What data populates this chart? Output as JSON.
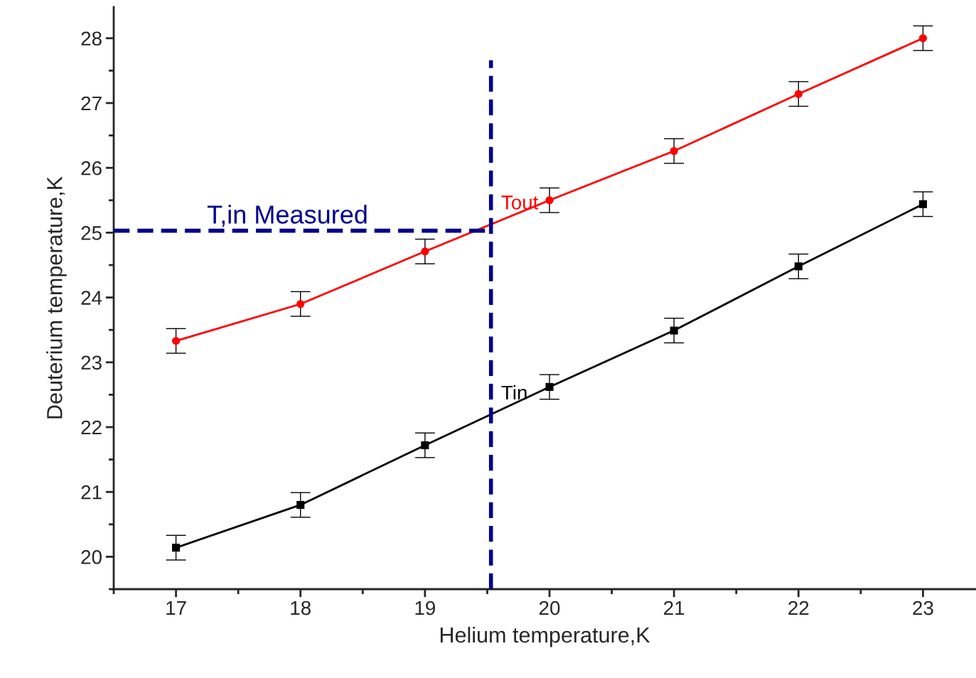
{
  "chart_data": {
    "type": "line",
    "xlabel": "Helium temperature,K",
    "ylabel": "Deuterium temperature,K",
    "xlim": [
      16.5,
      23.42
    ],
    "ylim": [
      19.5,
      28.48
    ],
    "xticks": [
      17,
      18,
      19,
      20,
      21,
      22,
      23
    ],
    "yticks": [
      20,
      21,
      22,
      23,
      24,
      25,
      26,
      27,
      28
    ],
    "grid": false,
    "legend": false,
    "series": [
      {
        "name": "Tout",
        "color": "#ff0000",
        "marker": "circle",
        "line_style": "solid",
        "x": [
          17,
          18,
          19,
          20,
          21,
          22,
          23
        ],
        "values": [
          23.33,
          23.9,
          24.71,
          25.5,
          26.26,
          27.14,
          28.0
        ],
        "errors": [
          0.19,
          0.19,
          0.19,
          0.19,
          0.19,
          0.19,
          0.19
        ]
      },
      {
        "name": "Tin",
        "color": "#000000",
        "marker": "square",
        "line_style": "solid",
        "x": [
          17,
          18,
          19,
          20,
          21,
          22,
          23
        ],
        "values": [
          20.14,
          20.8,
          21.72,
          22.62,
          23.49,
          24.48,
          25.44
        ],
        "errors": [
          0.19,
          0.19,
          0.19,
          0.19,
          0.19,
          0.19,
          0.19
        ]
      },
      {
        "name": "T,in Measured",
        "color": "#00008b",
        "marker": "none",
        "line_style": "dashed",
        "x": [
          16.5,
          19.53
        ],
        "values": [
          25.03,
          25.03
        ]
      },
      {
        "color": "#00008b",
        "marker": "none",
        "line_style": "dashed",
        "x": [
          19.53,
          19.53
        ],
        "values": [
          19.5,
          27.66
        ]
      }
    ]
  }
}
